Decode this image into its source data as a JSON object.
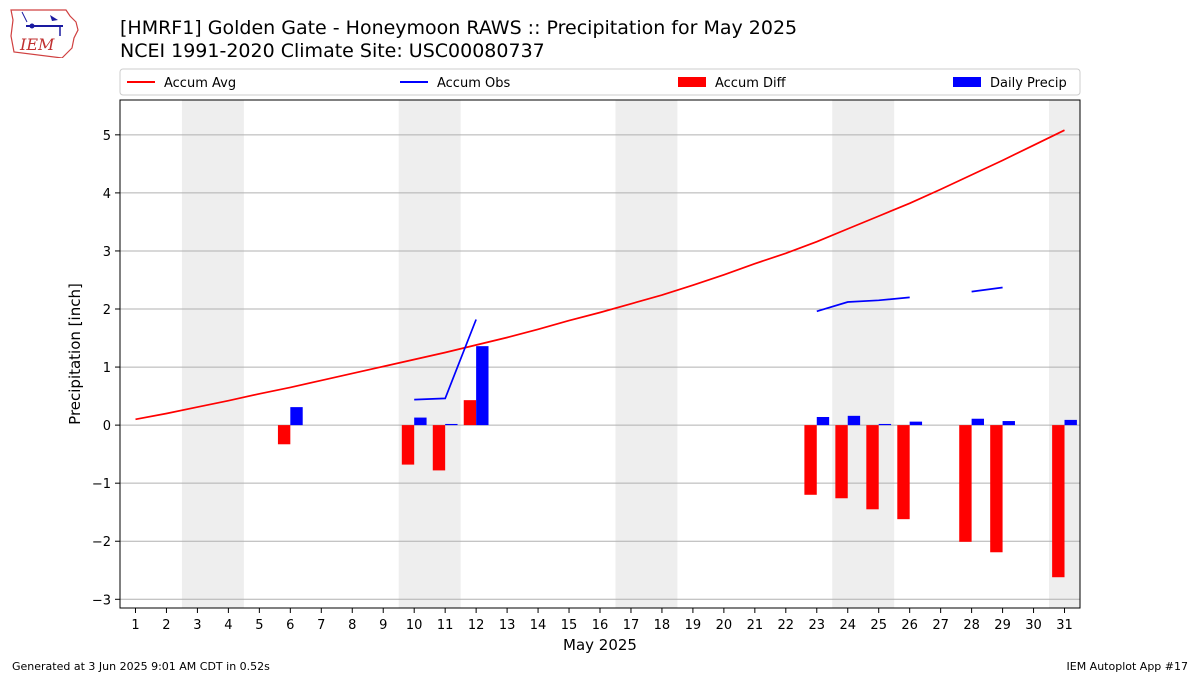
{
  "header": {
    "title_line1": "[HMRF1] Golden Gate - Honeymoon RAWS :: Precipitation for May 2025",
    "title_line2": "NCEI 1991-2020 Climate Site: USC00080737"
  },
  "logo": {
    "text": "IEM",
    "icon": "iem-iowa-logo"
  },
  "footer": {
    "left": "Generated at 3 Jun 2025 9:01 AM CDT in 0.52s",
    "right": "IEM Autoplot App #17"
  },
  "colors": {
    "avg": "#ff0000",
    "obs": "#0000ff",
    "diff": "#ff0000",
    "daily": "#0000ff",
    "weekend": "#eeeeee",
    "grid": "#b0b0b0"
  },
  "chart_data": {
    "type": "bar",
    "xlabel": "May 2025",
    "ylabel": "Precipitation [inch]",
    "ylim": [
      -3.15,
      5.6
    ],
    "xlim": [
      0.5,
      31.5
    ],
    "yticks": [
      -3,
      -2,
      -1,
      0,
      1,
      2,
      3,
      4,
      5
    ],
    "ytick_labels": [
      "−3",
      "−2",
      "−1",
      "0",
      "1",
      "2",
      "3",
      "4",
      "5"
    ],
    "categories": [
      "1",
      "2",
      "3",
      "4",
      "5",
      "6",
      "7",
      "8",
      "9",
      "10",
      "11",
      "12",
      "13",
      "14",
      "15",
      "16",
      "17",
      "18",
      "19",
      "20",
      "21",
      "22",
      "23",
      "24",
      "25",
      "26",
      "27",
      "28",
      "29",
      "30",
      "31"
    ],
    "grid": "horizontal",
    "legend_position": "top",
    "shaded_day_ranges": [
      [
        3,
        4
      ],
      [
        10,
        11
      ],
      [
        17,
        18
      ],
      [
        24,
        25
      ],
      [
        31,
        31
      ]
    ],
    "series": [
      {
        "name": "Accum Avg",
        "kind": "line",
        "values": [
          0.1,
          0.2,
          0.31,
          0.42,
          0.54,
          0.65,
          0.77,
          0.89,
          1.01,
          1.13,
          1.25,
          1.38,
          1.51,
          1.65,
          1.8,
          1.94,
          2.09,
          2.24,
          2.41,
          2.59,
          2.78,
          2.96,
          3.16,
          3.38,
          3.6,
          3.82,
          4.06,
          4.31,
          4.56,
          4.82,
          5.08
        ]
      },
      {
        "name": "Accum Obs",
        "kind": "line",
        "values": [
          null,
          null,
          null,
          null,
          null,
          null,
          null,
          null,
          null,
          0.44,
          0.46,
          1.82,
          null,
          null,
          null,
          null,
          null,
          null,
          null,
          null,
          null,
          null,
          1.96,
          2.12,
          2.15,
          2.2,
          null,
          2.3,
          2.37,
          null,
          null
        ]
      },
      {
        "name": "Accum Diff",
        "kind": "bar",
        "values": [
          null,
          null,
          null,
          null,
          null,
          -0.33,
          null,
          null,
          null,
          -0.68,
          -0.78,
          0.43,
          null,
          null,
          null,
          null,
          null,
          null,
          null,
          null,
          null,
          null,
          -1.2,
          -1.26,
          -1.45,
          -1.62,
          null,
          -2.01,
          -2.19,
          null,
          -2.62
        ]
      },
      {
        "name": "Daily Precip",
        "kind": "bar",
        "values": [
          null,
          null,
          null,
          null,
          null,
          0.31,
          null,
          null,
          null,
          0.13,
          0.02,
          1.36,
          null,
          null,
          null,
          null,
          null,
          null,
          null,
          null,
          null,
          null,
          0.14,
          0.16,
          0.02,
          0.06,
          null,
          0.11,
          0.07,
          null,
          0.09
        ]
      }
    ]
  }
}
